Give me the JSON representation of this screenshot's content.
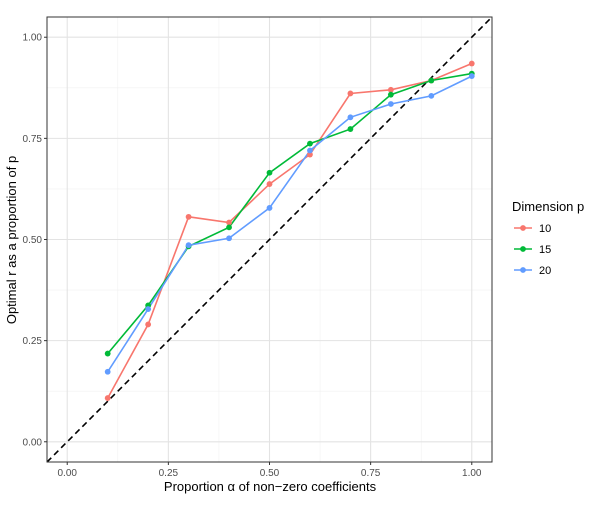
{
  "chart_data": {
    "type": "line",
    "xlabel": "Proportion α of non−zero coefficients",
    "ylabel": "Optimal r as a proportion of p",
    "xlim": [
      -0.05,
      1.05
    ],
    "ylim": [
      -0.05,
      1.05
    ],
    "x_ticks": [
      0.0,
      0.25,
      0.5,
      0.75,
      1.0
    ],
    "x_tick_labels": [
      "0.00",
      "0.25",
      "0.50",
      "0.75",
      "1.00"
    ],
    "y_ticks": [
      0.0,
      0.25,
      0.5,
      0.75,
      1.0
    ],
    "y_tick_labels": [
      "0.00",
      "0.25",
      "0.50",
      "0.75",
      "1.00"
    ],
    "grid": true,
    "x": [
      0.1,
      0.2,
      0.3,
      0.4,
      0.5,
      0.6,
      0.7,
      0.8,
      0.9,
      1.0
    ],
    "series": [
      {
        "name": "10",
        "color": "#F8766D",
        "values": [
          0.108,
          0.29,
          0.556,
          0.542,
          0.637,
          0.71,
          0.861,
          0.87,
          0.893,
          0.935
        ]
      },
      {
        "name": "15",
        "color": "#00BA38",
        "values": [
          0.218,
          0.337,
          0.483,
          0.53,
          0.665,
          0.737,
          0.773,
          0.858,
          0.893,
          0.91
        ]
      },
      {
        "name": "20",
        "color": "#619CFF",
        "values": [
          0.173,
          0.328,
          0.486,
          0.503,
          0.578,
          0.72,
          0.802,
          0.835,
          0.855,
          0.904
        ]
      }
    ],
    "reference_line": {
      "style": "dashed",
      "color": "#000000",
      "from": [
        -0.05,
        -0.05
      ],
      "to": [
        1.05,
        1.05
      ]
    },
    "legend": {
      "title": "Dimension p",
      "position": "right"
    }
  }
}
